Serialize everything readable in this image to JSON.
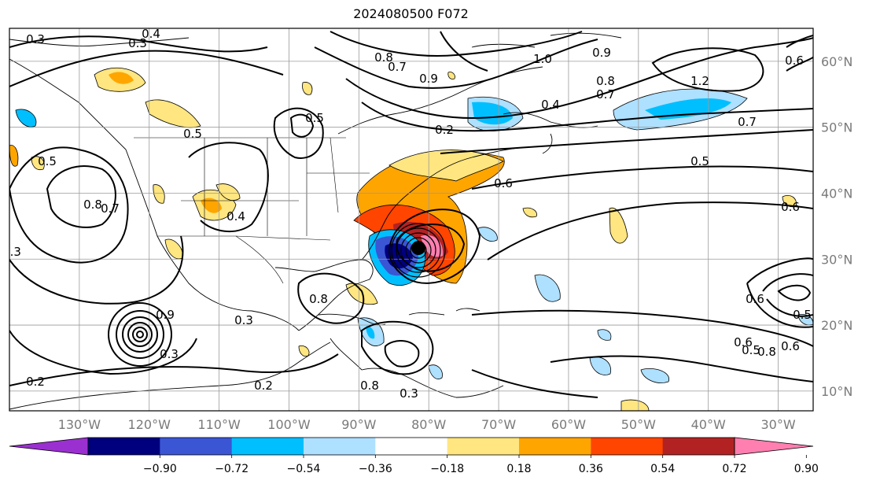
{
  "title": "2024080500 F072",
  "map": {
    "lon_range": [
      -140,
      -25
    ],
    "lat_range": [
      7,
      65
    ],
    "lon_ticks": [
      "130°W",
      "120°W",
      "110°W",
      "100°W",
      "90°W",
      "80°W",
      "70°W",
      "60°W",
      "50°W",
      "40°W",
      "30°W"
    ],
    "lat_ticks": [
      "60°N",
      "50°N",
      "40°N",
      "30°N",
      "20°N",
      "10°N"
    ],
    "gridlines": true
  },
  "colorbar": {
    "ticks": [
      "−0.90",
      "−0.72",
      "−0.54",
      "−0.36",
      "−0.18",
      "0.18",
      "0.36",
      "0.54",
      "0.72",
      "0.90"
    ],
    "colors": [
      "#9b30d0",
      "#00007f",
      "#3a56d4",
      "#00bfff",
      "#aee0ff",
      "#ffffff",
      "#ffe680",
      "#ffa500",
      "#ff4500",
      "#b22222",
      "#ff7fb0"
    ]
  },
  "contour_labels": [
    "0.3",
    "0.4",
    "0.3",
    "0.8",
    "0.7",
    "0.9",
    "1.0",
    "0.8",
    "0.7",
    "0.5",
    "0.8",
    "0.6",
    "1.2",
    "0.4",
    "0.2",
    "0.7",
    "0.5",
    "0.6",
    "0.6",
    "0.5",
    "0.7",
    "0.3",
    "0.4",
    "0.8",
    "0.5",
    "0.2",
    "0.9",
    "0.3",
    "0.6",
    "0.2",
    "0.3",
    "0.8",
    "0.3",
    "0.5",
    "0.6",
    "0.5",
    "0.8",
    "0.6",
    "0.9"
  ]
}
